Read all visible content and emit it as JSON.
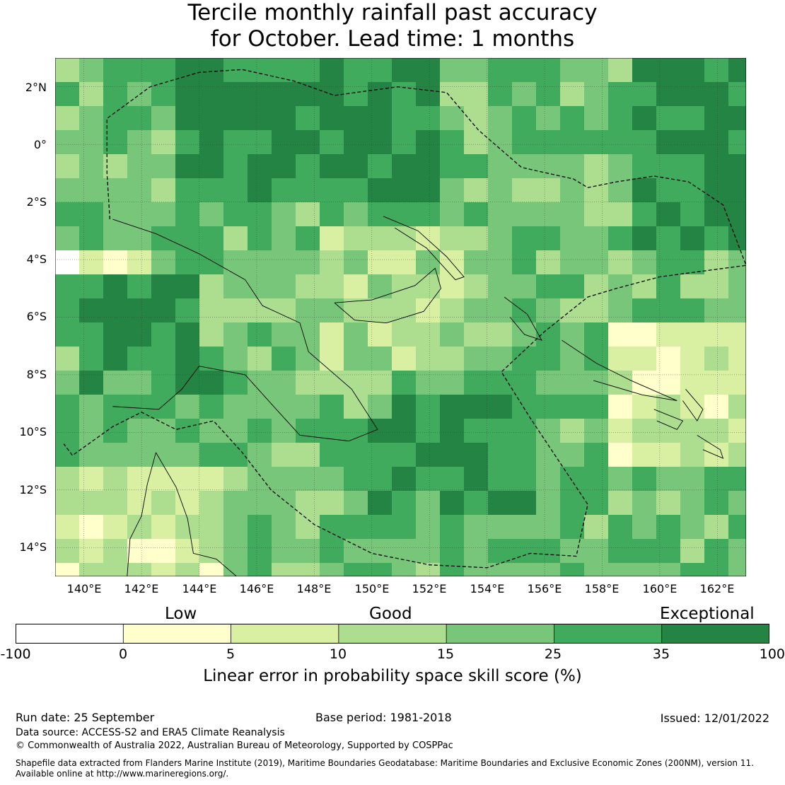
{
  "title": {
    "line1": "Tercile monthly rainfall past accuracy",
    "line2": "for October. Lead time: 1 months"
  },
  "map": {
    "lat_ticks": [
      "2°N",
      "0°",
      "2°S",
      "4°S",
      "6°S",
      "8°S",
      "10°S",
      "12°S",
      "14°S"
    ],
    "lon_ticks": [
      "140°E",
      "142°E",
      "144°E",
      "146°E",
      "148°E",
      "150°E",
      "152°E",
      "154°E",
      "156°E",
      "158°E",
      "160°E",
      "162°E"
    ],
    "lon_range": [
      139,
      163
    ],
    "lat_range": [
      -15,
      3
    ],
    "grid_resolution_deg": 0.83
  },
  "legend": {
    "band_labels": [
      "Low",
      "Good",
      "Exceptional"
    ],
    "bins": [
      {
        "from": -100,
        "to": 0,
        "color": "#ffffff"
      },
      {
        "from": 0,
        "to": 5,
        "color": "#ffffcc"
      },
      {
        "from": 5,
        "to": 10,
        "color": "#d9f0a3"
      },
      {
        "from": 10,
        "to": 15,
        "color": "#addd8e"
      },
      {
        "from": 15,
        "to": 25,
        "color": "#78c679"
      },
      {
        "from": 25,
        "to": 35,
        "color": "#41ab5d"
      },
      {
        "from": 35,
        "to": 100,
        "color": "#238443"
      }
    ],
    "tick_labels": [
      "-100",
      "0",
      "5",
      "10",
      "15",
      "25",
      "35",
      "100"
    ],
    "title": "Linear error in probability space skill score (%)"
  },
  "footer": {
    "run_date": "Run date: 25 September",
    "base_period": "Base period: 1981-2018",
    "issued": "Issued: 12/01/2022",
    "data_source": "Data source: ACCESS-S2 and ERA5 Climate Reanalysis",
    "copyright": "© Commonwealth of Australia 2022, Australian Bureau of Meteorology, Supported by COSPPac",
    "shapefile_line1": "Shapefile data extracted from Flanders Marine Institute (2019), Maritime Boundaries Geodatabase: Maritime Boundaries and Exclusive Economic Zones (200NM), version 11.",
    "shapefile_line2": "Available online at http://www.marineregions.org/."
  }
}
